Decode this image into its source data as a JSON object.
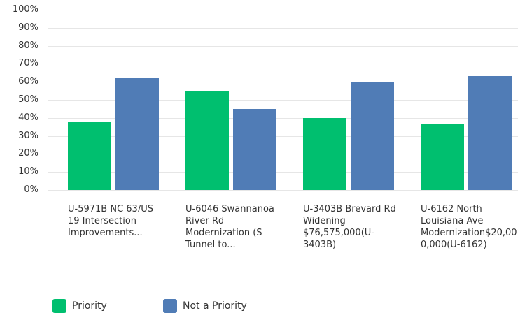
{
  "chart_data": {
    "type": "bar",
    "categories": [
      "U-5971B NC 63/US 19 Intersection Improvements...",
      "U-6046 Swannanoa River Rd Modernization (S Tunnel to...",
      "U-3403B Brevard Rd Widening $76,575,000(U-3403B)",
      "U-6162 North Louisiana Ave Modernization$20,000,000(U-6162)"
    ],
    "series": [
      {
        "name": "Priority",
        "color": "#00bf6f",
        "values": [
          38,
          55,
          40,
          37
        ]
      },
      {
        "name": "Not a Priority",
        "color": "#507cb6",
        "values": [
          62,
          45,
          60,
          63
        ]
      }
    ],
    "ylim": [
      0,
      100
    ],
    "yticks": [
      {
        "value": 0,
        "label": "0%"
      },
      {
        "value": 10,
        "label": "10%"
      },
      {
        "value": 20,
        "label": "20%"
      },
      {
        "value": 30,
        "label": "30%"
      },
      {
        "value": 40,
        "label": "40%"
      },
      {
        "value": 50,
        "label": "50%"
      },
      {
        "value": 60,
        "label": "60%"
      },
      {
        "value": 70,
        "label": "70%"
      },
      {
        "value": 80,
        "label": "80%"
      },
      {
        "value": 90,
        "label": "90%"
      },
      {
        "value": 100,
        "label": "100%"
      }
    ],
    "grid": true,
    "legend": "bottom"
  }
}
